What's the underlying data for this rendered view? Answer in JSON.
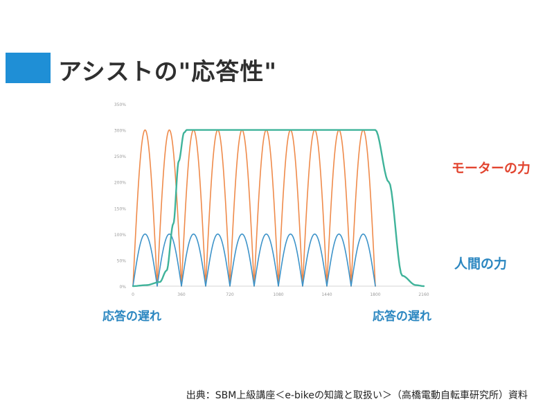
{
  "header": {
    "title": "アシストの\"応答性\"",
    "accent_color": "#1f8fd6"
  },
  "labels": {
    "motor_force": "モーターの力",
    "human_force": "人間の力",
    "response_delay_left": "応答の遅れ",
    "response_delay_right": "応答の遅れ"
  },
  "footer": {
    "source": "出典：SBM上級講座＜e-bikeの知識と取扱い＞（高橋電動自転車研究所）資料"
  },
  "chart_data": {
    "type": "line",
    "ylim": [
      0,
      350
    ],
    "xlim": [
      0,
      2160
    ],
    "y_ticks": [
      "0%",
      "50%",
      "100%",
      "150%",
      "200%",
      "250%",
      "300%",
      "350%"
    ],
    "x_ticks": [
      "0",
      "360",
      "720",
      "1080",
      "1440",
      "1800",
      "2160"
    ],
    "grid": false,
    "series": [
      {
        "name": "モーターの力",
        "color": "#ef8a4a",
        "shape": "abs-sine",
        "amplitude": 300,
        "period": 180,
        "x_range": [
          0,
          1800
        ]
      },
      {
        "name": "人間の力",
        "color": "#3d93c9",
        "shape": "abs-sine",
        "amplitude": 100,
        "period": 180,
        "x_range": [
          0,
          1800
        ]
      },
      {
        "name": "応答",
        "color": "#3fb39a",
        "points": [
          [
            0,
            0
          ],
          [
            100,
            2
          ],
          [
            200,
            8
          ],
          [
            250,
            30
          ],
          [
            300,
            120
          ],
          [
            340,
            240
          ],
          [
            380,
            295
          ],
          [
            400,
            300
          ],
          [
            1800,
            300
          ],
          [
            1900,
            200
          ],
          [
            2000,
            20
          ],
          [
            2100,
            2
          ],
          [
            2160,
            0
          ]
        ]
      }
    ]
  }
}
